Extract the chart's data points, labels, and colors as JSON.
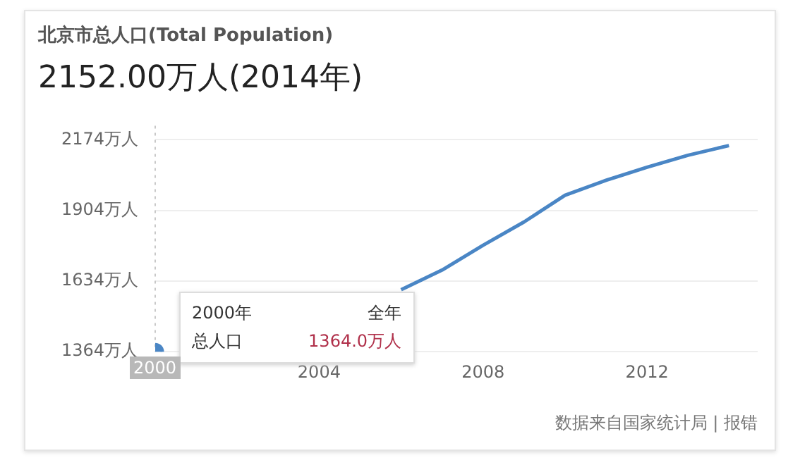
{
  "chart_data": {
    "type": "line",
    "title": "北京市总人口(Total Population)",
    "subtitle": "2152.00万人(2014年)",
    "x": [
      2000,
      2001,
      2002,
      2003,
      2004,
      2005,
      2006,
      2007,
      2008,
      2009,
      2010,
      2011,
      2012,
      2013,
      2014
    ],
    "series": [
      {
        "color": "#4a86c5",
        "values": [
          1364,
          null,
          null,
          null,
          null,
          null,
          1601,
          1676,
          1771,
          1860,
          1962,
          2019,
          2069,
          2115,
          2152
        ]
      }
    ],
    "xlim": [
      2000,
      2014.7
    ],
    "xticks": [
      2000,
      2004,
      2008,
      2012
    ],
    "ylim": [
      1364,
      2174
    ],
    "yticks": [
      {
        "value": 1364,
        "label": "1364万人"
      },
      {
        "value": 1634,
        "label": "1634万人"
      },
      {
        "value": 1904,
        "label": "1904万人"
      },
      {
        "value": 2174,
        "label": "2174万人"
      }
    ],
    "grid": "y",
    "legend": false,
    "marker": "none",
    "line_style": "solid",
    "ref_lines": [
      {
        "axis": "x",
        "value": 2000,
        "color": "#c8c8c8",
        "line_style": "dotted"
      }
    ],
    "annotations": [
      "2000年",
      "全年",
      "总人口",
      "1364.0万人",
      "2000",
      "数据来自国家统计局 | 报错"
    ]
  }
}
